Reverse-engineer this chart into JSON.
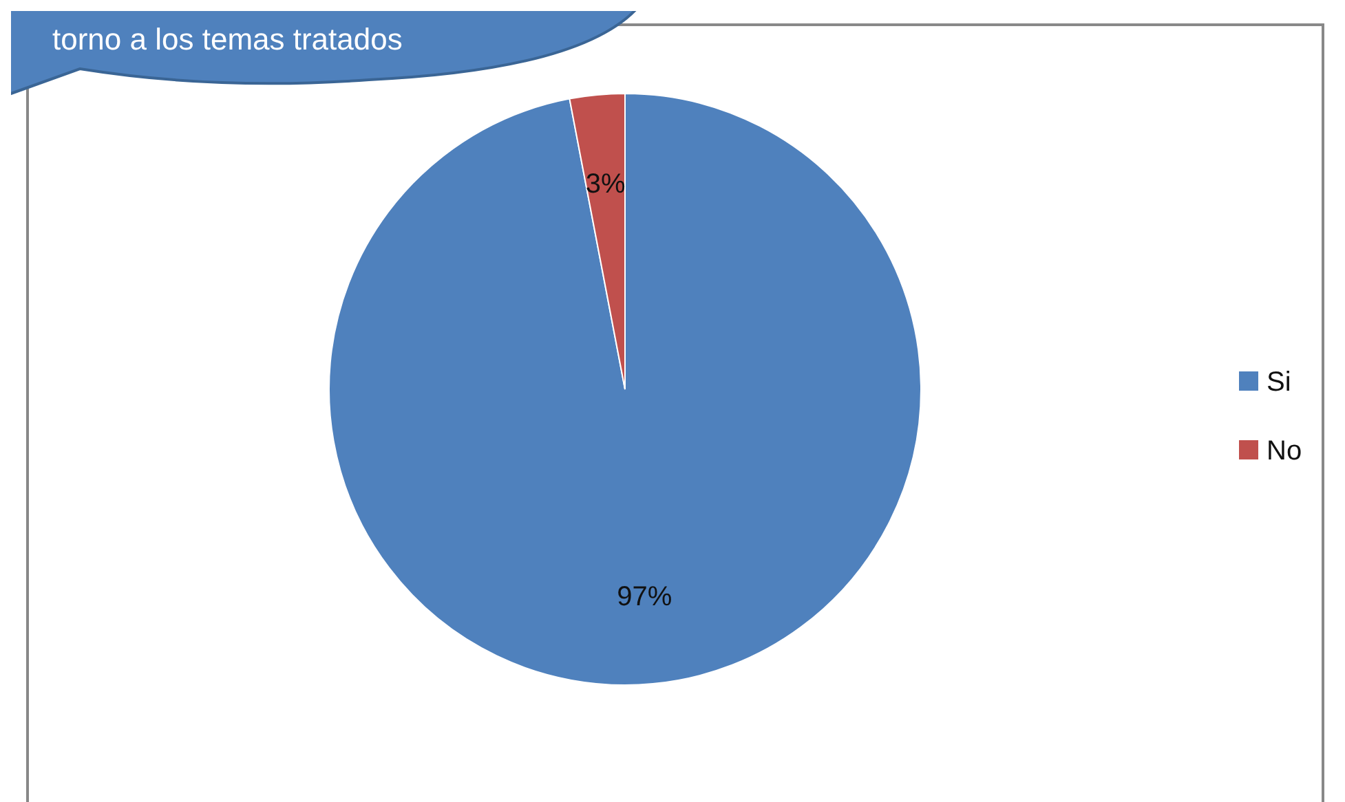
{
  "chart_data": {
    "type": "pie",
    "title": "torno a los temas tratados",
    "categories": [
      "Si",
      "No"
    ],
    "values": [
      97,
      3
    ],
    "value_labels": [
      "97%",
      "3%"
    ],
    "data_labels": true,
    "colors": [
      "#4f81bd",
      "#c0504d"
    ],
    "legend": "right"
  }
}
